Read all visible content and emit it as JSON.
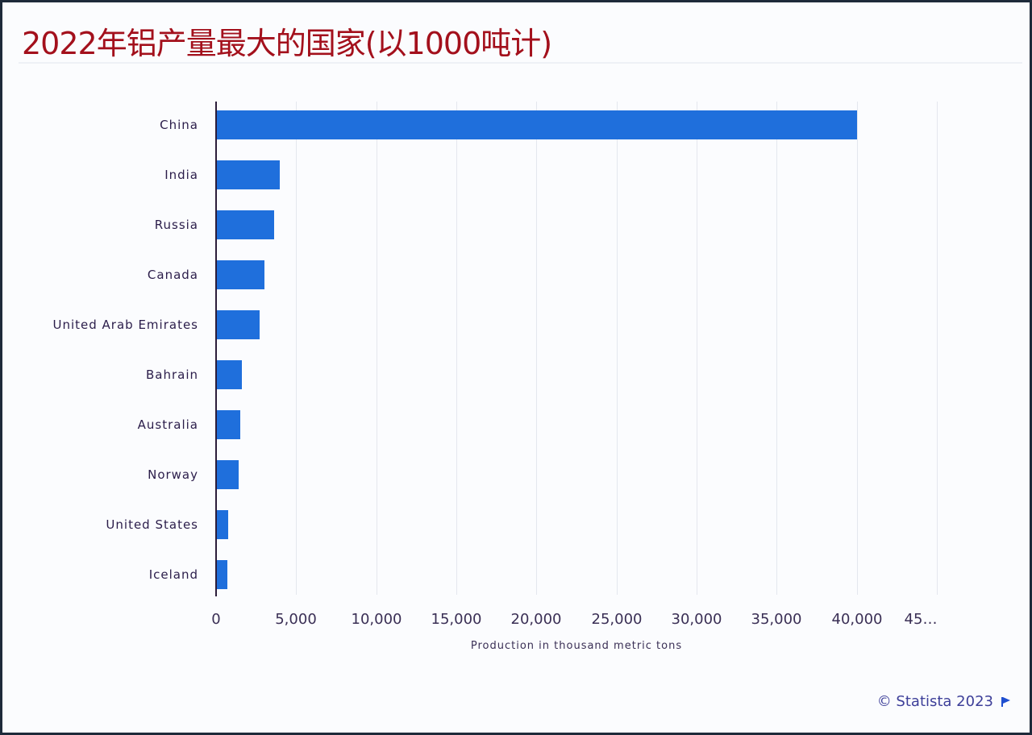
{
  "title": "2022年铝产量最大的国家(以1000吨计)",
  "credit": "© Statista 2023",
  "colors": {
    "title": "#a3101c",
    "bar": "#1f6fdc",
    "credit": "#3d3f99"
  },
  "chart_data": {
    "type": "bar",
    "orientation": "horizontal",
    "title": "2022年铝产量最大的国家(以1000吨计)",
    "categories": [
      "China",
      "India",
      "Russia",
      "Canada",
      "United Arab Emirates",
      "Bahrain",
      "Australia",
      "Norway",
      "United States",
      "Iceland"
    ],
    "values": [
      40000,
      4000,
      3600,
      3000,
      2700,
      1600,
      1500,
      1400,
      760,
      700
    ],
    "xlabel": "Production in thousand metric tons",
    "ylabel": "",
    "xlim": [
      0,
      45000
    ],
    "xticks": [
      0,
      5000,
      10000,
      15000,
      20000,
      25000,
      30000,
      35000,
      40000,
      45000
    ],
    "xtick_labels": [
      "0",
      "5,000",
      "10,000",
      "15,000",
      "20,000",
      "25,000",
      "30,000",
      "35,000",
      "40,000",
      "45…"
    ],
    "grid": true,
    "legend": null,
    "source": "© Statista 2023"
  }
}
